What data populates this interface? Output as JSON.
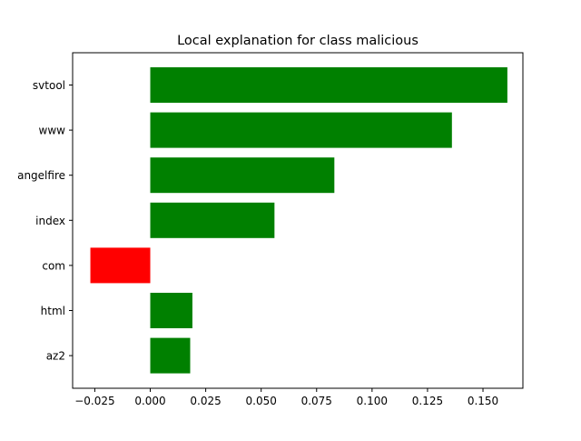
{
  "chart_data": {
    "type": "bar",
    "orientation": "horizontal",
    "title": "Local explanation for class malicious",
    "xlabel": "",
    "ylabel": "",
    "categories": [
      "svtool",
      "www",
      "angelfire",
      "index",
      "com",
      "html",
      "az2"
    ],
    "values": [
      0.161,
      0.136,
      0.083,
      0.056,
      -0.027,
      0.019,
      0.018
    ],
    "xlim": [
      -0.035,
      0.168
    ],
    "xticks": [
      -0.025,
      0.0,
      0.025,
      0.05,
      0.075,
      0.1,
      0.125,
      0.15
    ],
    "xtick_labels": [
      "−0.025",
      "0.000",
      "0.025",
      "0.050",
      "0.075",
      "0.100",
      "0.125",
      "0.150"
    ],
    "grid": false,
    "legend": "none",
    "colors": {
      "positive": "#008000",
      "negative": "#ff0000"
    }
  }
}
